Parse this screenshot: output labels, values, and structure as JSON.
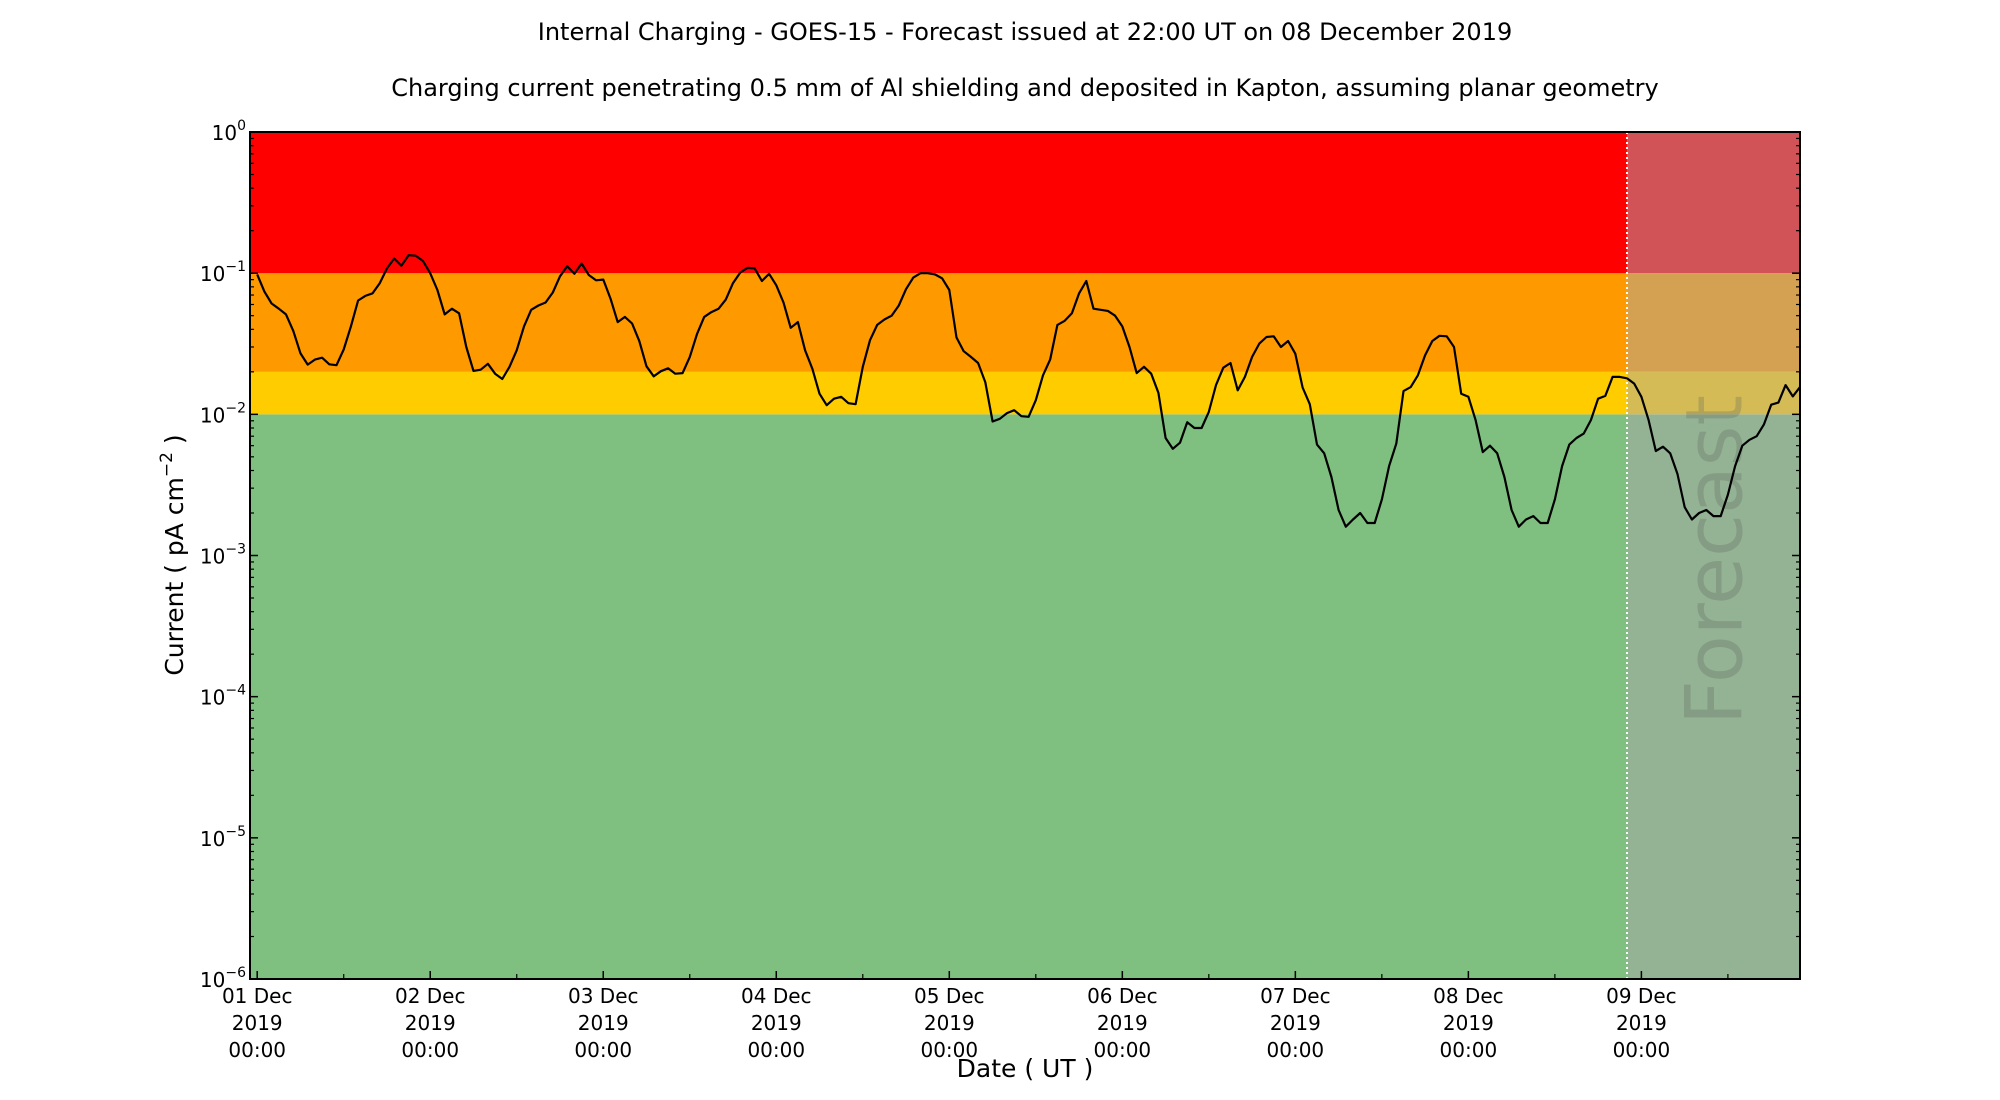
{
  "chart_data": {
    "type": "line",
    "title": "Internal Charging - GOES-15 - Forecast issued at 22:00 UT on 08 December 2019",
    "subtitle": "Charging current penetrating 0.5 mm of Al shielding and deposited in Kapton, assuming planar geometry",
    "xlabel": "Date ( UT )",
    "ylabel": {
      "text": "Current ( pA cm",
      "sup": "−2",
      "close": " )"
    },
    "xlim": [
      "2019-11-30 23:00",
      "2019-12-09 22:00"
    ],
    "ylim": [
      1e-06,
      1
    ],
    "yscale": "log",
    "grid": false,
    "legend": "none",
    "line_color": "#000000",
    "forecast_start": "2019-12-08 22:00",
    "forecast_label": "Forecast",
    "forecast_line_color": "#ffffff",
    "bands": [
      {
        "from": 1e-06,
        "to": 0.01,
        "color": "#7fbf7f",
        "forecast_color": "#94b294"
      },
      {
        "from": 0.01,
        "to": 0.02,
        "color": "#ffcc00",
        "forecast_color": "#d4bb55"
      },
      {
        "from": 0.02,
        "to": 0.1,
        "color": "#ff9900",
        "forecast_color": "#d4a052"
      },
      {
        "from": 0.1,
        "to": 1,
        "color": "#ff0000",
        "forecast_color": "#d15357"
      }
    ],
    "x_ticks": [
      {
        "date": "2019-12-01 00:00",
        "lines": [
          "01 Dec",
          "2019",
          "00:00"
        ]
      },
      {
        "date": "2019-12-02 00:00",
        "lines": [
          "02 Dec",
          "2019",
          "00:00"
        ]
      },
      {
        "date": "2019-12-03 00:00",
        "lines": [
          "03 Dec",
          "2019",
          "00:00"
        ]
      },
      {
        "date": "2019-12-04 00:00",
        "lines": [
          "04 Dec",
          "2019",
          "00:00"
        ]
      },
      {
        "date": "2019-12-05 00:00",
        "lines": [
          "05 Dec",
          "2019",
          "00:00"
        ]
      },
      {
        "date": "2019-12-06 00:00",
        "lines": [
          "06 Dec",
          "2019",
          "00:00"
        ]
      },
      {
        "date": "2019-12-07 00:00",
        "lines": [
          "07 Dec",
          "2019",
          "00:00"
        ]
      },
      {
        "date": "2019-12-08 00:00",
        "lines": [
          "08 Dec",
          "2019",
          "00:00"
        ]
      },
      {
        "date": "2019-12-09 00:00",
        "lines": [
          "09 Dec",
          "2019",
          "00:00"
        ]
      }
    ],
    "y_ticks": [
      {
        "value": 1,
        "base": "10",
        "exp": "0"
      },
      {
        "value": 0.1,
        "base": "10",
        "exp": "−1"
      },
      {
        "value": 0.01,
        "base": "10",
        "exp": "−2"
      },
      {
        "value": 0.001,
        "base": "10",
        "exp": "−3"
      },
      {
        "value": 0.0001,
        "base": "10",
        "exp": "−4"
      },
      {
        "value": 1e-05,
        "base": "10",
        "exp": "−5"
      },
      {
        "value": 1e-06,
        "base": "10",
        "exp": "−6"
      }
    ],
    "series": [
      {
        "hourly_by_day": [
          {
            "date": "2019-12-01",
            "values": [
              0.098,
              0.074,
              0.061,
              0.056,
              0.051,
              0.039,
              0.027,
              0.0225,
              0.0244,
              0.0252,
              0.0226,
              0.0223,
              0.0288,
              0.042,
              0.064,
              0.069,
              0.072,
              0.085,
              0.108,
              0.127,
              0.113,
              0.134,
              0.133,
              0.122
            ]
          },
          {
            "date": "2019-12-02",
            "values": [
              0.1,
              0.076,
              0.051,
              0.056,
              0.052,
              0.03,
              0.0203,
              0.0207,
              0.0228,
              0.0194,
              0.0178,
              0.0217,
              0.0284,
              0.042,
              0.055,
              0.059,
              0.062,
              0.073,
              0.095,
              0.112,
              0.099,
              0.117,
              0.097,
              0.089
            ]
          },
          {
            "date": "2019-12-03",
            "values": [
              0.09,
              0.066,
              0.045,
              0.049,
              0.044,
              0.033,
              0.0219,
              0.0186,
              0.0202,
              0.0212,
              0.0194,
              0.0196,
              0.0255,
              0.037,
              0.049,
              0.053,
              0.056,
              0.065,
              0.085,
              0.101,
              0.109,
              0.108,
              0.088,
              0.099
            ]
          },
          {
            "date": "2019-12-04",
            "values": [
              0.082,
              0.062,
              0.041,
              0.045,
              0.0284,
              0.0211,
              0.014,
              0.0116,
              0.0129,
              0.0133,
              0.012,
              0.0118,
              0.0217,
              0.0335,
              0.043,
              0.047,
              0.05,
              0.059,
              0.077,
              0.093,
              0.1,
              0.1,
              0.098,
              0.092
            ]
          },
          {
            "date": "2019-12-05",
            "values": [
              0.076,
              0.035,
              0.028,
              0.0255,
              0.0231,
              0.0169,
              0.0089,
              0.0093,
              0.0102,
              0.0107,
              0.0097,
              0.0096,
              0.0126,
              0.0189,
              0.0245,
              0.043,
              0.046,
              0.052,
              0.072,
              0.088,
              0.056,
              0.055,
              0.054,
              0.05
            ]
          },
          {
            "date": "2019-12-06",
            "values": [
              0.042,
              0.03,
              0.0196,
              0.0217,
              0.0194,
              0.0142,
              0.0068,
              0.0057,
              0.0063,
              0.0088,
              0.008,
              0.008,
              0.0104,
              0.0161,
              0.0214,
              0.0231,
              0.0148,
              0.0184,
              0.0255,
              0.0317,
              0.0353,
              0.0357,
              0.03,
              0.0331
            ]
          },
          {
            "date": "2019-12-07",
            "values": [
              0.0269,
              0.0155,
              0.0118,
              0.0061,
              0.0053,
              0.0036,
              0.0021,
              0.0016,
              0.0018,
              0.002,
              0.0017,
              0.0017,
              0.0025,
              0.0043,
              0.0062,
              0.0146,
              0.0156,
              0.0189,
              0.0262,
              0.0331,
              0.036,
              0.0357,
              0.03,
              0.014
            ]
          },
          {
            "date": "2019-12-08",
            "values": [
              0.0133,
              0.0091,
              0.0054,
              0.006,
              0.0053,
              0.0036,
              0.0021,
              0.0016,
              0.0018,
              0.0019,
              0.0017,
              0.0017,
              0.0025,
              0.0043,
              0.0061,
              0.0068,
              0.0073,
              0.0091,
              0.0129,
              0.0135,
              0.0184,
              0.0184,
              0.018,
              0.0165
            ]
          },
          {
            "date": "2019-12-09",
            "values": [
              0.0133,
              0.0091,
              0.0055,
              0.0059,
              0.0053,
              0.0038,
              0.0022,
              0.0018,
              0.002,
              0.0021,
              0.0019,
              0.0019,
              0.0027,
              0.0043,
              0.006,
              0.0066,
              0.007,
              0.0085,
              0.0117,
              0.0121,
              0.0161,
              0.0134,
              0.0156
            ]
          }
        ]
      }
    ]
  }
}
